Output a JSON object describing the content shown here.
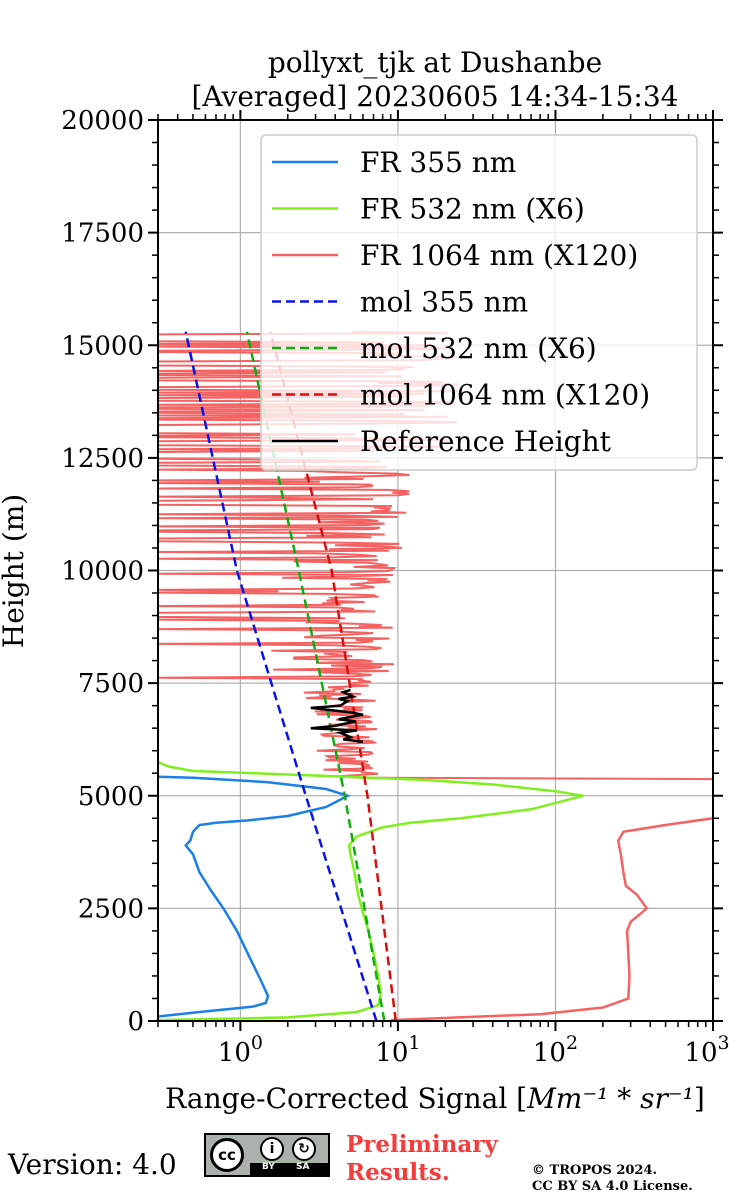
{
  "chart_data": {
    "type": "line",
    "title_line1": "pollyxt_tjk at Dushanbe",
    "title_line2": "[Averaged] 20230605 14:34-15:34",
    "xlabel_prefix": "Range-Corrected Signal [",
    "xlabel_math": "Mm⁻¹ * sr⁻¹",
    "xlabel_suffix": "]",
    "ylabel": "Height (m)",
    "xscale": "log",
    "xlim": [
      0.3,
      1000
    ],
    "ylim": [
      0,
      20000
    ],
    "grid": true,
    "legend_position": "upper-right",
    "x_ticks": [
      {
        "value": 1,
        "base": "10",
        "exp": "0"
      },
      {
        "value": 10,
        "base": "10",
        "exp": "1"
      },
      {
        "value": 100,
        "base": "10",
        "exp": "2"
      },
      {
        "value": 1000,
        "base": "10",
        "exp": "3"
      }
    ],
    "y_ticks": [
      "0",
      "2500",
      "5000",
      "7500",
      "10000",
      "12500",
      "15000",
      "17500",
      "20000"
    ],
    "series": [
      {
        "name": "FR 355 nm",
        "color": "#1a7fe8",
        "style": "solid",
        "points": [
          [
            0.3,
            100
          ],
          [
            0.55,
            200
          ],
          [
            1.2,
            320
          ],
          [
            1.45,
            400
          ],
          [
            1.5,
            550
          ],
          [
            1.35,
            900
          ],
          [
            1.15,
            1400
          ],
          [
            0.95,
            2000
          ],
          [
            0.78,
            2500
          ],
          [
            0.65,
            2900
          ],
          [
            0.55,
            3300
          ],
          [
            0.5,
            3700
          ],
          [
            0.45,
            3900
          ],
          [
            0.48,
            4000
          ],
          [
            0.5,
            4200
          ],
          [
            0.55,
            4350
          ],
          [
            0.7,
            4400
          ],
          [
            1.1,
            4450
          ],
          [
            2.0,
            4550
          ],
          [
            3.5,
            4750
          ],
          [
            4.8,
            5000
          ],
          [
            3.5,
            5150
          ],
          [
            1.5,
            5300
          ],
          [
            0.5,
            5400
          ],
          [
            0.3,
            5420
          ]
        ]
      },
      {
        "name": "FR 532 nm (X6)",
        "color": "#7ff01e",
        "style": "solid",
        "points": [
          [
            0.3,
            20
          ],
          [
            2.0,
            80
          ],
          [
            5.5,
            200
          ],
          [
            7.5,
            350
          ],
          [
            7.8,
            600
          ],
          [
            7.5,
            1000
          ],
          [
            7.0,
            1500
          ],
          [
            6.5,
            2000
          ],
          [
            6.0,
            2400
          ],
          [
            5.6,
            2800
          ],
          [
            5.3,
            3300
          ],
          [
            5.0,
            3700
          ],
          [
            4.9,
            3900
          ],
          [
            5.5,
            4100
          ],
          [
            8.0,
            4300
          ],
          [
            12,
            4400
          ],
          [
            25,
            4500
          ],
          [
            70,
            4700
          ],
          [
            150,
            5000
          ],
          [
            100,
            5100
          ],
          [
            40,
            5250
          ],
          [
            15,
            5350
          ],
          [
            3,
            5450
          ],
          [
            0.5,
            5550
          ],
          [
            0.35,
            5650
          ],
          [
            0.3,
            5750
          ]
        ]
      },
      {
        "name": "FR 1064 nm (X120)",
        "color": "#f56262",
        "style": "solid",
        "points": [
          [
            9.0,
            20
          ],
          [
            80,
            150
          ],
          [
            200,
            300
          ],
          [
            290,
            500
          ],
          [
            295,
            1000
          ],
          [
            290,
            1500
          ],
          [
            285,
            2000
          ],
          [
            300,
            2200
          ],
          [
            380,
            2500
          ],
          [
            330,
            2800
          ],
          [
            280,
            3000
          ],
          [
            270,
            3300
          ],
          [
            260,
            3700
          ],
          [
            250,
            4000
          ],
          [
            270,
            4200
          ],
          [
            500,
            4350
          ],
          [
            1000,
            4500
          ]
        ]
      },
      {
        "name": "mol 355 nm",
        "color": "#0a14e6",
        "style": "dashed",
        "points": [
          [
            7.3,
            0
          ],
          [
            2.6,
            5000
          ],
          [
            0.95,
            10000
          ],
          [
            0.45,
            15300
          ]
        ]
      },
      {
        "name": "mol 532 nm (X6)",
        "color": "#0fae10",
        "style": "dashed",
        "points": [
          [
            8.2,
            0
          ],
          [
            4.6,
            5000
          ],
          [
            2.35,
            10000
          ],
          [
            1.1,
            15300
          ]
        ]
      },
      {
        "name": "mol 1064 nm (X120)",
        "color": "#d70f0f",
        "style": "dashed",
        "points": [
          [
            9.7,
            0
          ],
          [
            6.4,
            5000
          ],
          [
            3.8,
            10000
          ],
          [
            1.55,
            15300
          ]
        ]
      },
      {
        "name": "Reference Height",
        "color": "#000000",
        "style": "solid",
        "points": [
          [
            6.0,
            6200
          ],
          [
            4.5,
            6250
          ],
          [
            5.0,
            6300
          ],
          [
            4.3,
            6400
          ],
          [
            5.5,
            6450
          ],
          [
            2.8,
            6500
          ],
          [
            4.0,
            6550
          ],
          [
            4.6,
            6600
          ],
          [
            5.4,
            6650
          ],
          [
            4.2,
            6700
          ],
          [
            6.0,
            6800
          ],
          [
            5.0,
            6850
          ],
          [
            2.8,
            6950
          ],
          [
            4.3,
            7000
          ],
          [
            4.8,
            7100
          ],
          [
            4.2,
            7150
          ],
          [
            5.2,
            7200
          ],
          [
            4.5,
            7300
          ],
          [
            5.0,
            7350
          ]
        ]
      }
    ]
  },
  "footer": {
    "version": "Version: 4.0",
    "cc_label": "cc",
    "by_label": "BY",
    "sa_label": "SA",
    "preliminary_line1": "Preliminary",
    "preliminary_line2": "Results.",
    "copyright_line1": "© TROPOS 2024.",
    "copyright_line2": "CC BY SA 4.0 License."
  }
}
